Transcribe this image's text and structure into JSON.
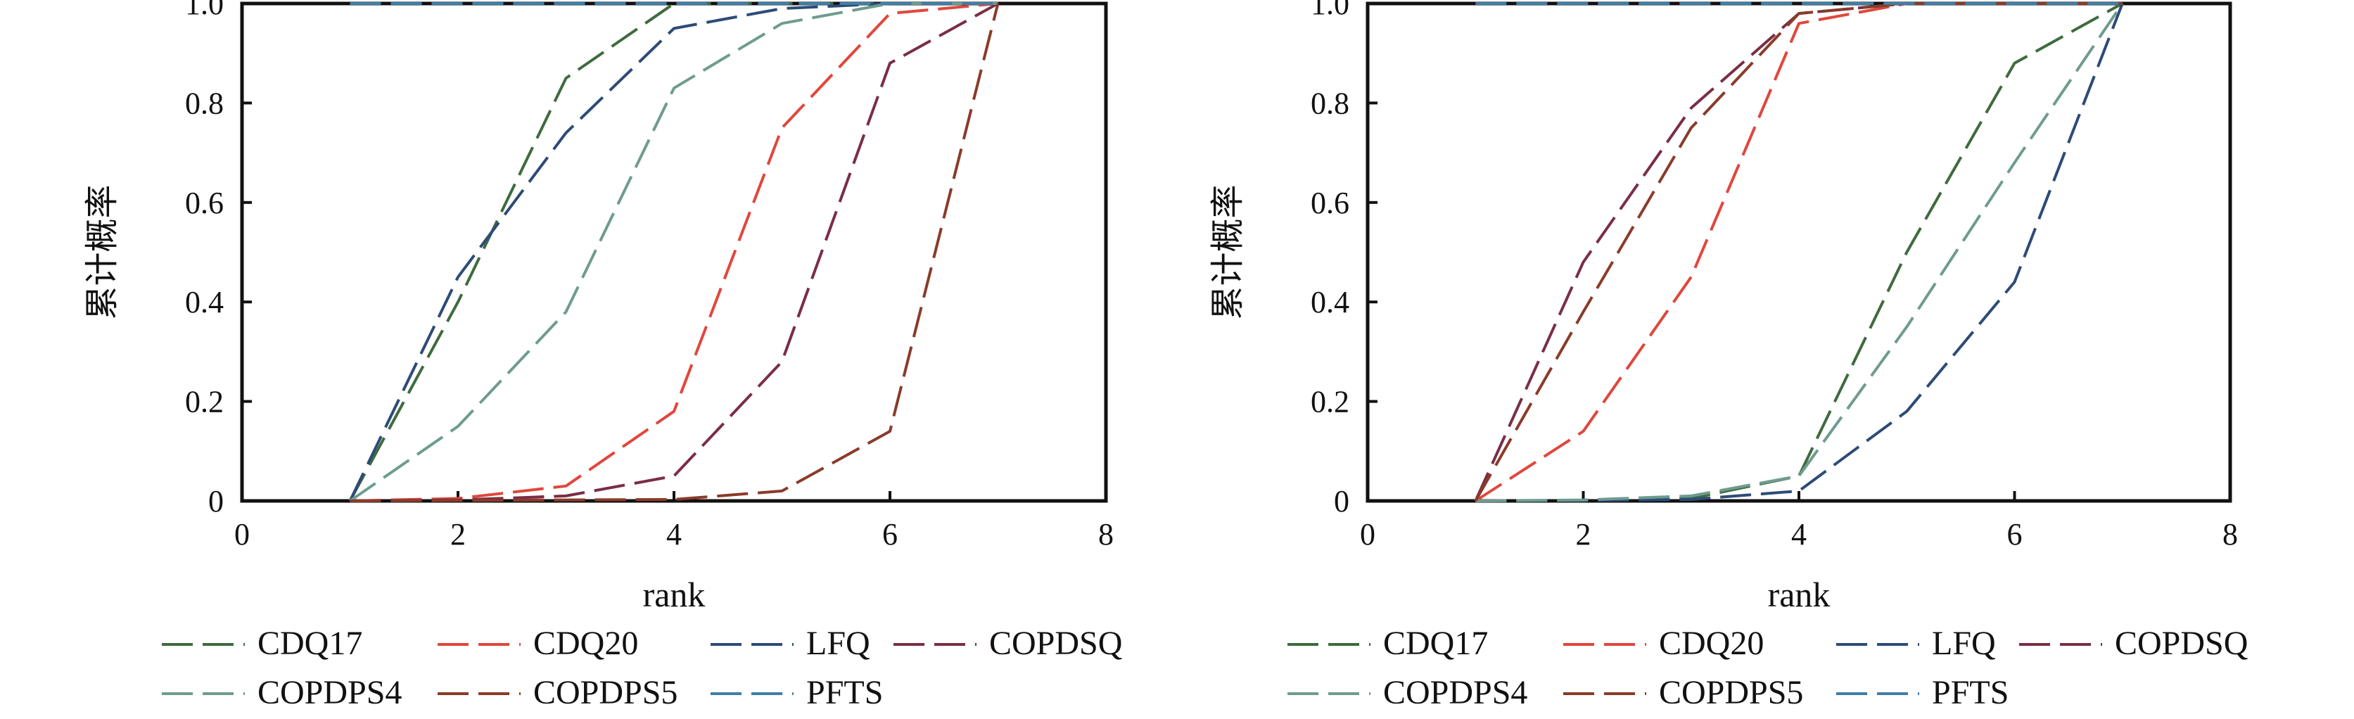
{
  "chart_data": [
    {
      "type": "line",
      "xlabel": "rank",
      "ylabel": "累计概率",
      "xlim": [
        0,
        8
      ],
      "ylim": [
        0,
        1
      ],
      "xticks": [
        "0",
        "2",
        "4",
        "6",
        "8"
      ],
      "yticks": [
        "0",
        "0.2",
        "0.4",
        "0.6",
        "0.8",
        "1.0"
      ],
      "line_style": "dashed",
      "legend_position": "bottom",
      "x": [
        1,
        2,
        3,
        4,
        5,
        6,
        7
      ],
      "series": [
        {
          "name": "CDQ17",
          "color": "#3f6b3f",
          "values": [
            0,
            0.4,
            0.85,
            1.0,
            1.0,
            1.0,
            1.0
          ]
        },
        {
          "name": "CDQ20",
          "color": "#e0473c",
          "values": [
            0,
            0.005,
            0.03,
            0.18,
            0.75,
            0.98,
            1.0
          ]
        },
        {
          "name": "LFQ",
          "color": "#2d4b78",
          "values": [
            0,
            0.45,
            0.74,
            0.95,
            0.99,
            1.0,
            1.0
          ]
        },
        {
          "name": "COPDSQ",
          "color": "#7a2e44",
          "values": [
            0,
            0.002,
            0.01,
            0.05,
            0.28,
            0.88,
            1.0
          ]
        },
        {
          "name": "COPDPS4",
          "color": "#6e9c8e",
          "values": [
            0,
            0.15,
            0.38,
            0.83,
            0.96,
            1.0,
            1.0
          ]
        },
        {
          "name": "COPDPS5",
          "color": "#8a3b2a",
          "values": [
            0,
            0.001,
            0.002,
            0.003,
            0.02,
            0.14,
            1.0
          ]
        },
        {
          "name": "PFTS",
          "color": "#3e7fa8",
          "values": [
            1.0,
            1.0,
            1.0,
            1.0,
            1.0,
            1.0,
            1.0
          ]
        }
      ]
    },
    {
      "type": "line",
      "xlabel": "rank",
      "ylabel": "累计概率",
      "xlim": [
        0,
        8
      ],
      "ylim": [
        0,
        1
      ],
      "xticks": [
        "0",
        "2",
        "4",
        "6",
        "8"
      ],
      "yticks": [
        "0",
        "0.2",
        "0.4",
        "0.6",
        "0.8",
        "1.0"
      ],
      "line_style": "dashed",
      "legend_position": "bottom",
      "x": [
        1,
        2,
        3,
        4,
        5,
        6,
        7
      ],
      "series": [
        {
          "name": "CDQ17",
          "color": "#3f6b3f",
          "values": [
            0,
            0.001,
            0.005,
            0.05,
            0.5,
            0.88,
            1.0
          ]
        },
        {
          "name": "CDQ20",
          "color": "#e0473c",
          "values": [
            0,
            0.14,
            0.45,
            0.96,
            1.0,
            1.0,
            1.0
          ]
        },
        {
          "name": "LFQ",
          "color": "#2d4b78",
          "values": [
            0,
            0.001,
            0.003,
            0.02,
            0.18,
            0.44,
            1.0
          ]
        },
        {
          "name": "COPDSQ",
          "color": "#7a2e44",
          "values": [
            0,
            0.48,
            0.79,
            0.98,
            1.0,
            1.0,
            1.0
          ]
        },
        {
          "name": "COPDPS4",
          "color": "#6e9c8e",
          "values": [
            0,
            0.002,
            0.01,
            0.05,
            0.35,
            0.68,
            1.0
          ]
        },
        {
          "name": "COPDPS5",
          "color": "#8a3b2a",
          "values": [
            0,
            0.38,
            0.75,
            0.98,
            1.0,
            1.0,
            1.0
          ]
        },
        {
          "name": "PFTS",
          "color": "#3e7fa8",
          "values": [
            1.0,
            1.0,
            1.0,
            1.0,
            1.0,
            1.0,
            1.0
          ]
        }
      ]
    }
  ]
}
